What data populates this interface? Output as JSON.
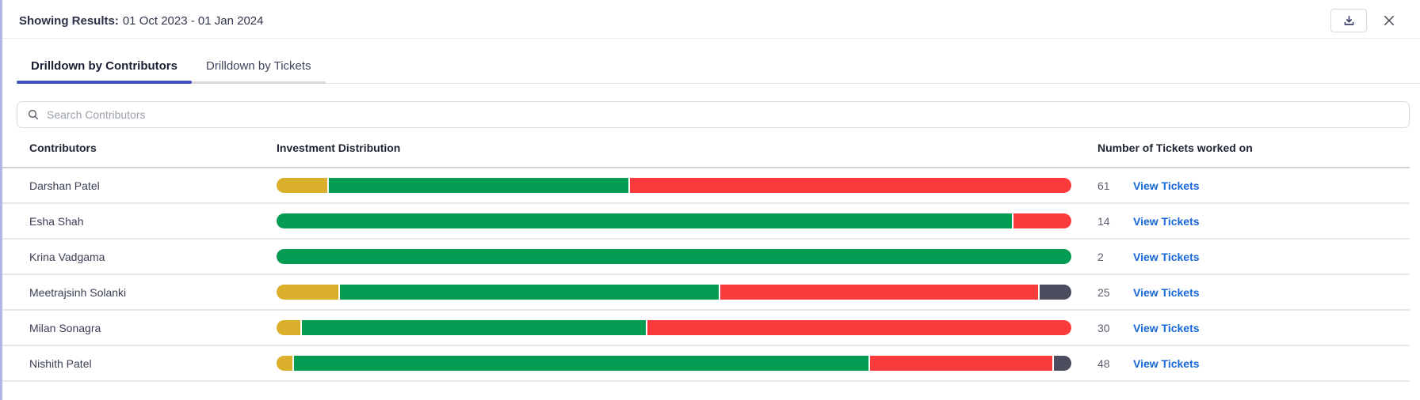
{
  "header": {
    "label": "Showing Results:",
    "value": "01 Oct 2023 - 01 Jan 2024"
  },
  "tabs": [
    {
      "label": "Drilldown by Contributors",
      "active": true
    },
    {
      "label": "Drilldown by Tickets",
      "active": false
    }
  ],
  "search": {
    "placeholder": "Search Contributors",
    "value": "",
    "icon": "search-icon"
  },
  "table": {
    "columns": [
      "Contributors",
      "Investment Distribution",
      "Number of Tickets worked on"
    ],
    "link_label": "View Tickets",
    "rows": [
      {
        "name": "Darshan Patel",
        "tickets": "61",
        "segments": [
          {
            "color": "yellow",
            "pct": 6.4
          },
          {
            "color": "green",
            "pct": 37.8
          },
          {
            "color": "red",
            "pct": 55.8
          }
        ]
      },
      {
        "name": "Esha Shah",
        "tickets": "14",
        "segments": [
          {
            "color": "green",
            "pct": 92.7
          },
          {
            "color": "red",
            "pct": 7.3
          }
        ]
      },
      {
        "name": "Krina Vadgama",
        "tickets": "2",
        "segments": [
          {
            "color": "green",
            "pct": 100
          }
        ]
      },
      {
        "name": "Meetrajsinh Solanki",
        "tickets": "25",
        "segments": [
          {
            "color": "yellow",
            "pct": 7.8
          },
          {
            "color": "green",
            "pct": 48.0
          },
          {
            "color": "red",
            "pct": 40.2
          },
          {
            "color": "dark",
            "pct": 4.0
          }
        ]
      },
      {
        "name": "Milan Sonagra",
        "tickets": "30",
        "segments": [
          {
            "color": "yellow",
            "pct": 3.0
          },
          {
            "color": "green",
            "pct": 43.4
          },
          {
            "color": "red",
            "pct": 53.6
          }
        ]
      },
      {
        "name": "Nishith Patel",
        "tickets": "48",
        "segments": [
          {
            "color": "yellow",
            "pct": 2.0
          },
          {
            "color": "green",
            "pct": 72.7
          },
          {
            "color": "red",
            "pct": 23.1
          },
          {
            "color": "dark",
            "pct": 2.2
          }
        ]
      }
    ]
  },
  "icons": {
    "download": "download-icon",
    "close": "close-icon",
    "search": "search-icon"
  },
  "colors": {
    "yellow": "#D9AF2B",
    "green": "#049B52",
    "red": "#FB3B3B",
    "dark": "#4B4C5E",
    "link_blue": "#1667D9",
    "tab_active_underline": "#3B4EC1",
    "panel_left_border": "#AEB8E4"
  },
  "chart_data": {
    "type": "bar",
    "subtype": "horizontal-stacked-percent",
    "title": "Investment Distribution",
    "categories": [
      "Darshan Patel",
      "Esha Shah",
      "Krina Vadgama",
      "Meetrajsinh Solanki",
      "Milan Sonagra",
      "Nishith Patel"
    ],
    "series": [
      {
        "name": "yellow",
        "color": "#D9AF2B",
        "values": [
          6.4,
          0,
          0,
          7.8,
          3.0,
          2.0
        ]
      },
      {
        "name": "green",
        "color": "#049B52",
        "values": [
          37.8,
          92.7,
          100,
          48.0,
          43.4,
          72.7
        ]
      },
      {
        "name": "red",
        "color": "#FB3B3B",
        "values": [
          55.8,
          7.3,
          0,
          40.2,
          53.6,
          23.1
        ]
      },
      {
        "name": "dark",
        "color": "#4B4C5E",
        "values": [
          0,
          0,
          0,
          4.0,
          0,
          2.2
        ]
      }
    ],
    "tickets_worked_on": [
      61,
      14,
      2,
      25,
      30,
      48
    ],
    "xlim": [
      0,
      100
    ],
    "grid": false,
    "legend": false
  }
}
